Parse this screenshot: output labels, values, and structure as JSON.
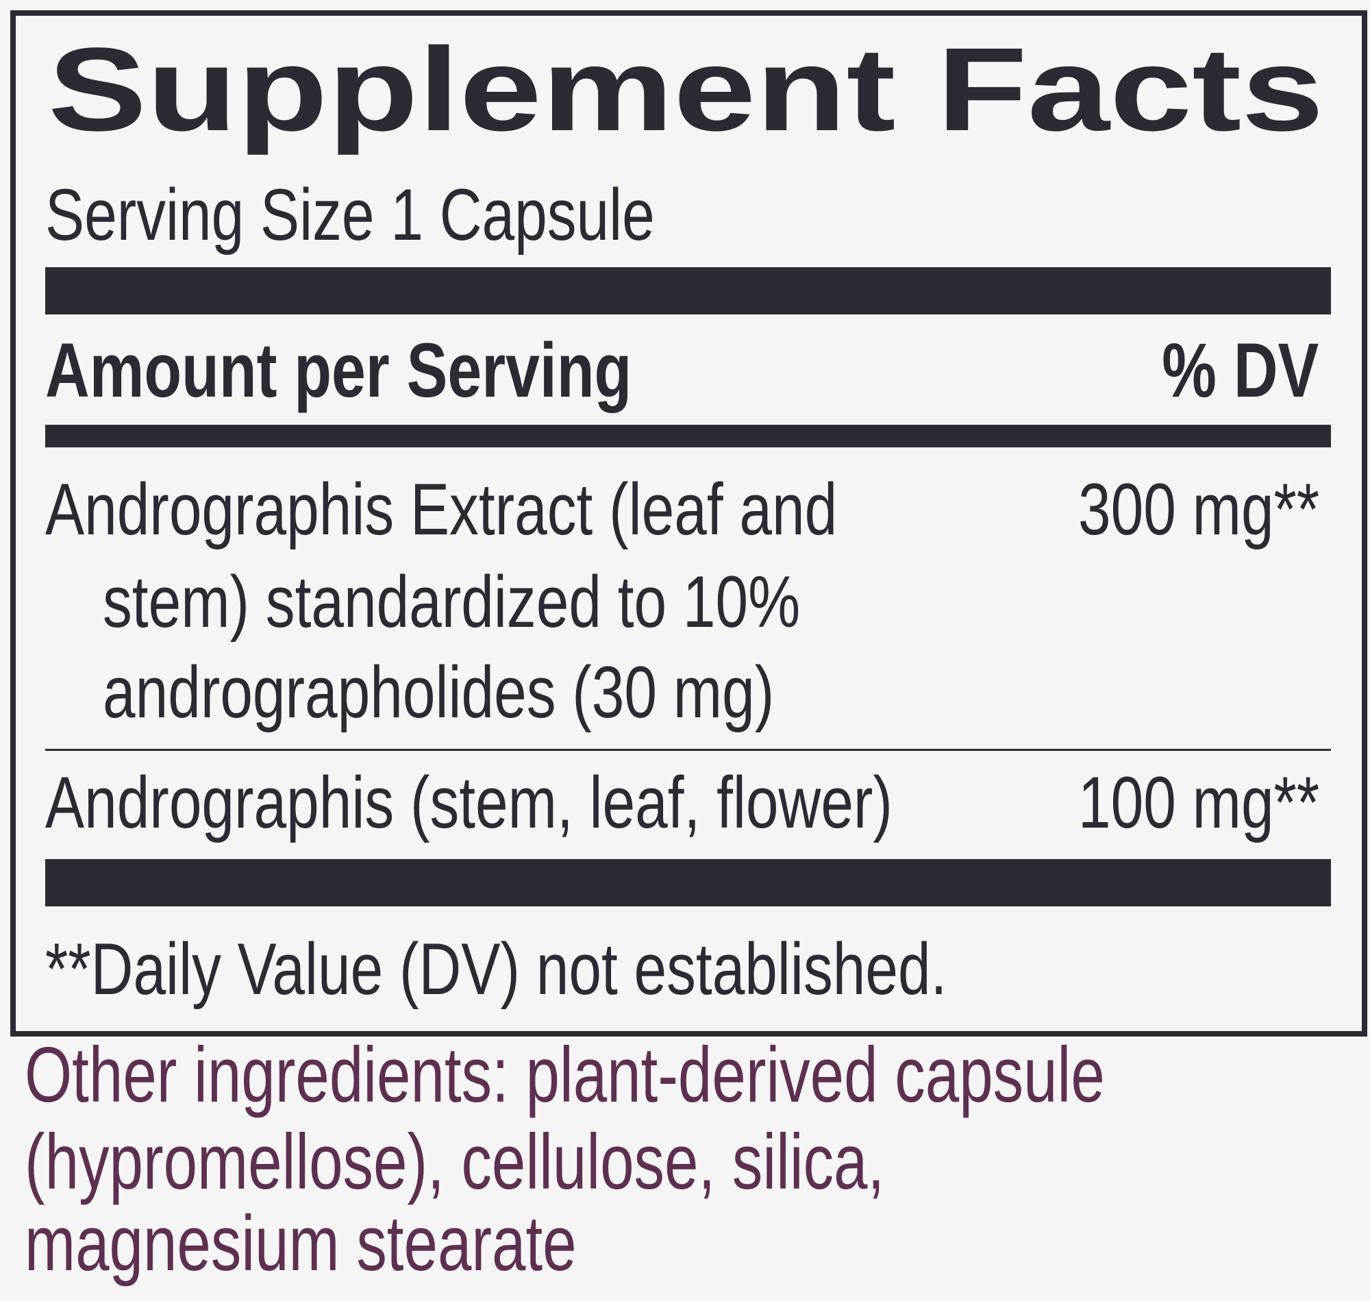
{
  "colors": {
    "text": "#2a2b33",
    "other_ingredients": "#5e3050",
    "background": "#f5f5f5"
  },
  "title": "Supplement Facts",
  "serving_size": "Serving Size 1 Capsule",
  "header": {
    "amount": "Amount per Serving",
    "dv": "% DV"
  },
  "rows": [
    {
      "lines": [
        "Andrographis Extract (leaf and",
        "stem) standardized to 10%",
        "andrographolides (30 mg)"
      ],
      "amount": "300 mg**"
    },
    {
      "lines": [
        "Andrographis (stem, leaf, flower)"
      ],
      "amount": "100 mg**"
    }
  ],
  "footnote": "**Daily Value (DV) not established.",
  "other_ingredients": [
    "Other ingredients: plant-derived capsule",
    "(hypromellose), cellulose, silica,",
    "magnesium stearate"
  ]
}
